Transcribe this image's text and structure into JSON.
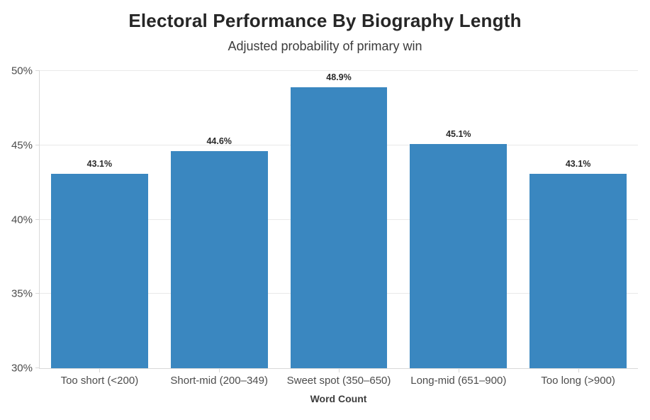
{
  "chart": {
    "title": "Electoral Performance By Biography Length",
    "subtitle": "Adjusted probability of primary win",
    "xlabel": "Word Count"
  },
  "chart_data": {
    "type": "bar",
    "title": "Electoral Performance By Biography Length",
    "subtitle": "Adjusted probability of primary win",
    "xlabel": "Word Count",
    "ylabel": "",
    "categories": [
      "Too short (<200)",
      "Short-mid (200–349)",
      "Sweet spot (350–650)",
      "Long-mid (651–900)",
      "Too long (>900)"
    ],
    "values": [
      43.1,
      44.6,
      48.9,
      45.1,
      43.1
    ],
    "value_labels": [
      "43.1%",
      "44.6%",
      "48.9%",
      "45.1%",
      "43.1%"
    ],
    "ylim": [
      30,
      50
    ],
    "yticks": [
      30,
      35,
      40,
      45,
      50
    ],
    "ytick_labels": [
      "30%",
      "35%",
      "40%",
      "45%",
      "50%"
    ],
    "bar_color": "#3a87c0",
    "grid": true,
    "legend": "none"
  }
}
